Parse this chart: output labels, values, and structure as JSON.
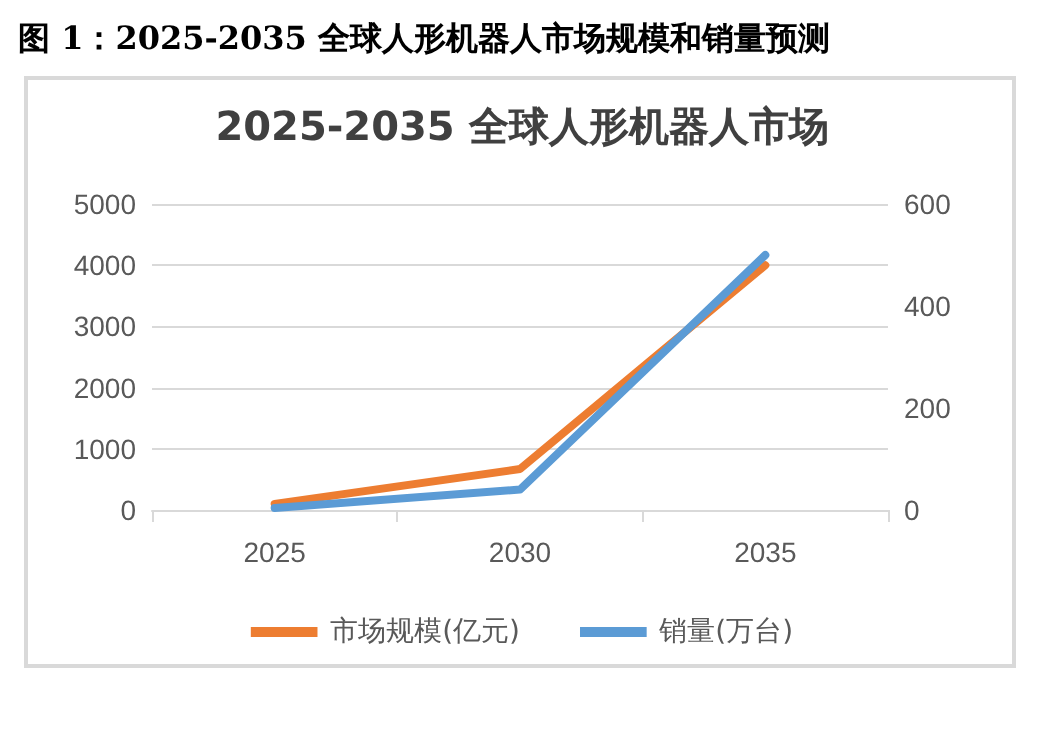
{
  "chart_data": {
    "type": "line",
    "title": "图 1：2025-2035 全球人形机器人市场规模和销量预测",
    "subtitle": "2025-2035 全球人形机器人市场",
    "categories": [
      "2025",
      "2030",
      "2035"
    ],
    "series": [
      {
        "name": "市场规模(亿元)",
        "color": "#ed7d31",
        "values": [
          100,
          670,
          4000
        ]
      },
      {
        "name": "销量(万台)",
        "color": "#5b9bd5",
        "values": [
          4,
          40,
          500
        ],
        "axis": "y2"
      }
    ],
    "ylim": [
      0,
      5000
    ],
    "yticks": [
      0,
      1000,
      2000,
      3000,
      4000,
      5000
    ],
    "y2lim": [
      0,
      600
    ],
    "y2ticks": [
      0,
      200,
      400,
      600
    ],
    "grid": "y",
    "legend": "bottom",
    "marker": "none",
    "line_style": "solid"
  }
}
